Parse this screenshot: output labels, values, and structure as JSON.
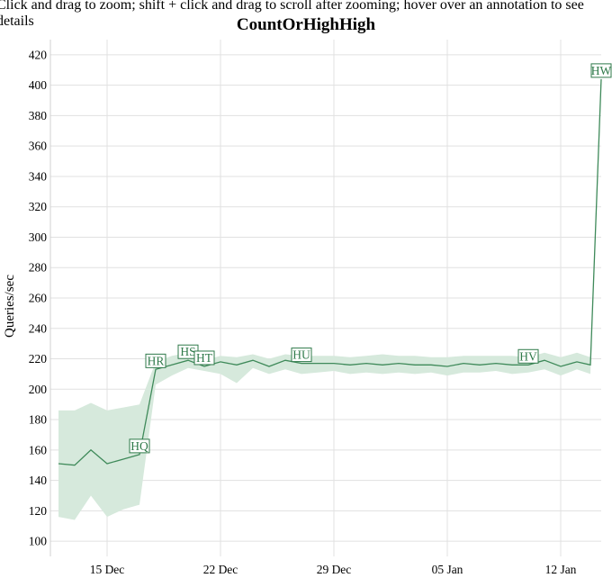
{
  "instructions": "Click and drag to zoom; shift + click and drag to scroll after zooming; hover over an annotation to see details",
  "colors": {
    "line": "#3f8a5a",
    "band": "#d6e9dc",
    "annotation_text": "#2f7a4a",
    "annotation_border": "#2f7a4a",
    "grid": "#e1e1e1"
  },
  "chart_data": {
    "type": "line",
    "title": "CountOrHighHigh",
    "ylabel": "Queries/sec",
    "xlabel": "",
    "ylim": [
      90,
      430
    ],
    "xlim": [
      "2015-12-11T12:00",
      "2016-01-14T12:00"
    ],
    "grid": true,
    "yticks": [
      100,
      120,
      140,
      160,
      180,
      200,
      220,
      240,
      260,
      280,
      300,
      320,
      340,
      360,
      380,
      400,
      420
    ],
    "xticks": [
      {
        "date": "2015-12-15",
        "label": "15 Dec"
      },
      {
        "date": "2015-12-22",
        "label": "22 Dec"
      },
      {
        "date": "2015-12-29",
        "label": "29 Dec"
      },
      {
        "date": "2016-01-05",
        "label": "05 Jan"
      },
      {
        "date": "2016-01-12",
        "label": "12 Jan"
      }
    ],
    "series": [
      {
        "points": [
          {
            "x": "2015-12-12",
            "y": 151,
            "low": 116,
            "high": 186
          },
          {
            "x": "2015-12-13",
            "y": 150,
            "low": 114,
            "high": 186
          },
          {
            "x": "2015-12-14",
            "y": 160,
            "low": 130,
            "high": 191
          },
          {
            "x": "2015-12-15",
            "y": 151,
            "low": 116,
            "high": 186
          },
          {
            "x": "2015-12-16",
            "y": 154,
            "low": 121,
            "high": 188
          },
          {
            "x": "2015-12-17",
            "y": 157,
            "low": 124,
            "high": 190
          },
          {
            "x": "2015-12-18",
            "y": 213,
            "low": 203,
            "high": 218
          },
          {
            "x": "2015-12-19",
            "y": 216,
            "low": 209,
            "high": 222
          },
          {
            "x": "2015-12-20",
            "y": 219,
            "low": 214,
            "high": 224
          },
          {
            "x": "2015-12-21",
            "y": 215,
            "low": 212,
            "high": 219
          },
          {
            "x": "2015-12-22",
            "y": 218,
            "low": 210,
            "high": 222
          },
          {
            "x": "2015-12-23",
            "y": 216,
            "low": 204,
            "high": 221
          },
          {
            "x": "2015-12-24",
            "y": 219,
            "low": 214,
            "high": 223
          },
          {
            "x": "2015-12-25",
            "y": 215,
            "low": 210,
            "high": 220
          },
          {
            "x": "2015-12-26",
            "y": 219,
            "low": 213,
            "high": 223
          },
          {
            "x": "2015-12-27",
            "y": 217,
            "low": 210,
            "high": 222
          },
          {
            "x": "2015-12-28",
            "y": 217,
            "low": 211,
            "high": 222
          },
          {
            "x": "2015-12-29",
            "y": 217,
            "low": 212,
            "high": 222
          },
          {
            "x": "2015-12-30",
            "y": 216,
            "low": 210,
            "high": 221
          },
          {
            "x": "2015-12-31",
            "y": 217,
            "low": 211,
            "high": 222
          },
          {
            "x": "2016-01-01",
            "y": 216,
            "low": 210,
            "high": 223
          },
          {
            "x": "2016-01-02",
            "y": 217,
            "low": 211,
            "high": 222
          },
          {
            "x": "2016-01-03",
            "y": 216,
            "low": 210,
            "high": 222
          },
          {
            "x": "2016-01-04",
            "y": 216,
            "low": 211,
            "high": 221
          },
          {
            "x": "2016-01-05",
            "y": 215,
            "low": 209,
            "high": 221
          },
          {
            "x": "2016-01-06",
            "y": 217,
            "low": 211,
            "high": 222
          },
          {
            "x": "2016-01-07",
            "y": 216,
            "low": 211,
            "high": 222
          },
          {
            "x": "2016-01-08",
            "y": 217,
            "low": 212,
            "high": 222
          },
          {
            "x": "2016-01-09",
            "y": 216,
            "low": 210,
            "high": 222
          },
          {
            "x": "2016-01-10",
            "y": 216,
            "low": 211,
            "high": 221
          },
          {
            "x": "2016-01-11",
            "y": 219,
            "low": 213,
            "high": 224
          },
          {
            "x": "2016-01-12",
            "y": 215,
            "low": 209,
            "high": 221
          },
          {
            "x": "2016-01-13",
            "y": 218,
            "low": 213,
            "high": 224
          },
          {
            "x": "2016-01-13T20:00",
            "y": 216,
            "low": 210,
            "high": 221
          },
          {
            "x": "2016-01-14T12:00",
            "y": 404,
            "low": 404,
            "high": 404
          }
        ]
      }
    ],
    "annotations": [
      {
        "label": "HQ",
        "x": "2015-12-17",
        "y": 157
      },
      {
        "label": "HR",
        "x": "2015-12-18",
        "y": 213
      },
      {
        "label": "HS",
        "x": "2015-12-20",
        "y": 219
      },
      {
        "label": "HT",
        "x": "2015-12-21",
        "y": 215
      },
      {
        "label": "HU",
        "x": "2015-12-27",
        "y": 217
      },
      {
        "label": "HV",
        "x": "2016-01-10",
        "y": 216
      },
      {
        "label": "HW",
        "x": "2016-01-14T12:00",
        "y": 404
      }
    ]
  }
}
